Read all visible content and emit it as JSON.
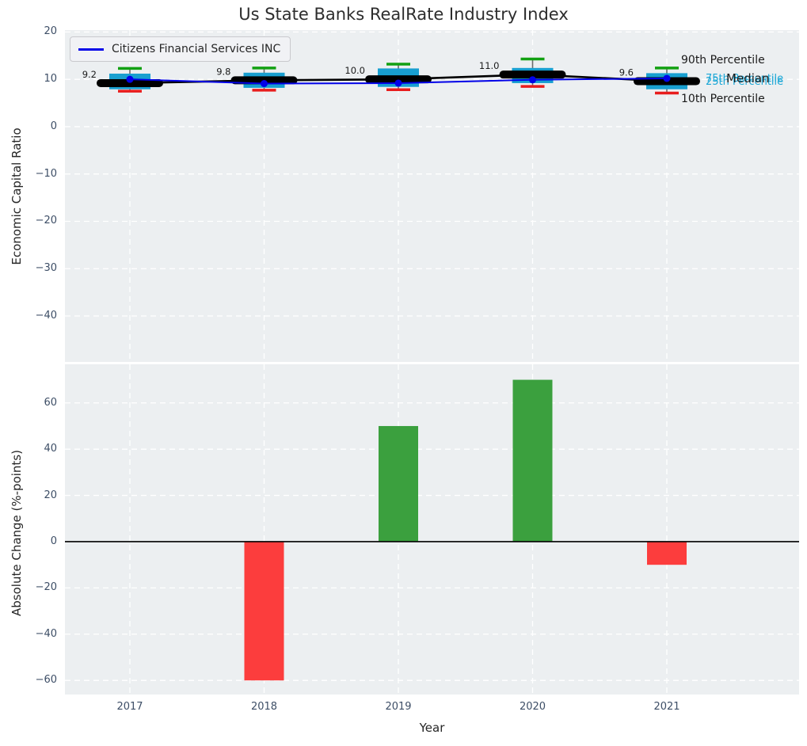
{
  "title": "Us State Banks RealRate Industry Index",
  "legend": {
    "label": "Citizens Financial Services INC"
  },
  "percentile_labels": {
    "p90": "90th Percentile",
    "p75": "75th Percentile",
    "median": "Median",
    "p25": "25th Percentile",
    "p10": "10th Percentile"
  },
  "colors": {
    "plot_bg": "#eceff1",
    "grid": "#ffffff",
    "box_fill": "#189fd0",
    "whisker": "#6b6b6b",
    "cap_top": "#12a012",
    "cap_bottom": "#e81d1d",
    "median_line": "#000000",
    "company_line": "#0202e8",
    "bar_positive": "#3ba03e",
    "bar_negative": "#fc3d3d",
    "zero_line": "#000000",
    "annotation": "#1a1a1a"
  },
  "chart_data": [
    {
      "type": "boxplot+line",
      "title": "Us State Banks RealRate Industry Index",
      "ylabel": "Economic Capital Ratio",
      "categories": [
        "2017",
        "2018",
        "2019",
        "2020",
        "2021"
      ],
      "yticks": [
        20,
        10,
        0,
        -10,
        -20,
        -30,
        -40
      ],
      "ytick_labels": [
        "20",
        "10",
        "0",
        "−10",
        "−20",
        "−30",
        "−40"
      ],
      "ylim": [
        -49.7,
        20.4
      ],
      "grid": "white dashed",
      "legend_position": "upper left",
      "boxes": [
        {
          "year": "2017",
          "p10": 7.5,
          "q25": 7.9,
          "median": 9.2,
          "q75": 11.2,
          "p90": 12.3
        },
        {
          "year": "2018",
          "p10": 7.7,
          "q25": 8.2,
          "median": 9.8,
          "q75": 11.4,
          "p90": 12.4
        },
        {
          "year": "2019",
          "p10": 7.8,
          "q25": 8.4,
          "median": 10.0,
          "q75": 12.3,
          "p90": 13.2
        },
        {
          "year": "2020",
          "p10": 8.5,
          "q25": 9.2,
          "median": 11.0,
          "q75": 12.4,
          "p90": 14.3
        },
        {
          "year": "2021",
          "p10": 7.1,
          "q25": 7.9,
          "median": 9.6,
          "q75": 11.3,
          "p90": 12.4
        }
      ],
      "median_annotations": [
        "9.2",
        "9.8",
        "10.0",
        "11.0",
        "9.6"
      ],
      "series": [
        {
          "name": "Citizens Financial Services INC",
          "values": [
            10.0,
            9.1,
            9.2,
            9.9,
            10.2
          ]
        },
        {
          "name": "Median",
          "values": [
            9.2,
            9.8,
            10.0,
            11.0,
            9.6
          ]
        }
      ]
    },
    {
      "type": "bar",
      "ylabel": "Absolute Change (%-points)",
      "xlabel": "Year",
      "categories": [
        "2017",
        "2018",
        "2019",
        "2020",
        "2021"
      ],
      "values": [
        null,
        -60,
        50,
        70,
        -10
      ],
      "yticks": [
        60,
        40,
        20,
        0,
        -20,
        -40,
        -60
      ],
      "ytick_labels": [
        "60",
        "40",
        "20",
        "0",
        "−20",
        "−40",
        "−60"
      ],
      "ylim": [
        -66.1,
        76.7
      ],
      "grid": "white dashed"
    }
  ]
}
